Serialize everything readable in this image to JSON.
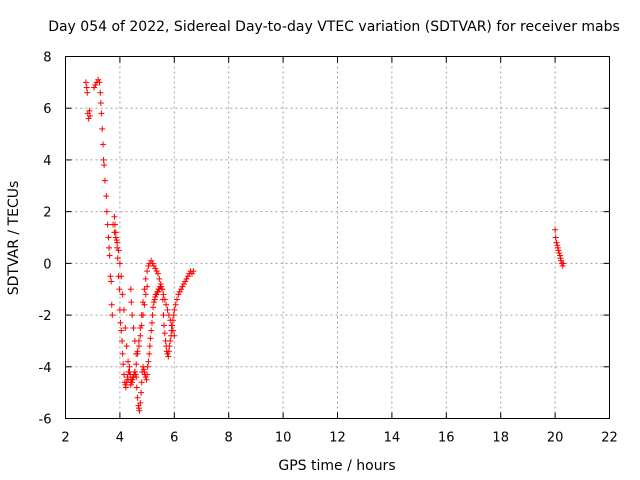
{
  "chart_data": {
    "type": "scatter",
    "title": "Day 054 of 2022, Sidereal Day-to-day VTEC variation (SDTVAR) for receiver mabs",
    "xlabel": "GPS time / hours",
    "ylabel": "SDTVAR / TECUs",
    "xlim": [
      2,
      22
    ],
    "ylim": [
      -6,
      8
    ],
    "xticks": [
      2,
      4,
      6,
      8,
      10,
      12,
      14,
      16,
      18,
      20,
      22
    ],
    "yticks": [
      -6,
      -4,
      -2,
      0,
      2,
      4,
      6,
      8
    ],
    "grid": true,
    "marker": "plus",
    "color": "#ff0000",
    "series": [
      {
        "name": "SDTVAR",
        "x": [
          2.75,
          2.78,
          2.8,
          2.82,
          2.85,
          2.88,
          2.9,
          3.05,
          3.1,
          3.15,
          3.2,
          3.25,
          3.28,
          3.3,
          3.32,
          3.35,
          3.38,
          3.4,
          3.42,
          3.45,
          3.5,
          3.52,
          3.55,
          3.58,
          3.6,
          3.62,
          3.65,
          3.68,
          3.7,
          3.72,
          3.8,
          3.82,
          3.85,
          3.88,
          3.9,
          3.92,
          3.95,
          3.98,
          4.0,
          4.02,
          4.05,
          4.08,
          4.1,
          4.12,
          4.15,
          4.18,
          4.2,
          4.22,
          4.25,
          4.28,
          4.3,
          4.32,
          4.35,
          4.38,
          4.4,
          4.42,
          4.45,
          4.48,
          4.5,
          4.52,
          4.55,
          4.58,
          4.6,
          4.62,
          4.65,
          4.68,
          4.7,
          4.72,
          4.75,
          4.78,
          4.8,
          4.82,
          4.85,
          4.88,
          4.9,
          4.92,
          4.95,
          4.98,
          5.0,
          5.02,
          5.05,
          5.08,
          5.1,
          5.12,
          5.15,
          5.18,
          5.2,
          5.22,
          5.25,
          5.28,
          5.3,
          5.32,
          5.35,
          5.38,
          5.4,
          5.42,
          5.45,
          5.48,
          5.5,
          5.52,
          5.55,
          5.58,
          5.6,
          5.62,
          5.65,
          5.68,
          5.7,
          5.72,
          5.75,
          5.78,
          5.8,
          5.82,
          5.85,
          5.88,
          5.9,
          5.92,
          5.95,
          5.98,
          6.0,
          6.05,
          6.1,
          6.15,
          6.2,
          6.25,
          6.3,
          6.35,
          6.4,
          6.45,
          6.5,
          6.55,
          6.6,
          6.65,
          6.7,
          4.4,
          4.42,
          4.45,
          4.5,
          4.55,
          4.6,
          4.65,
          4.7,
          4.75,
          4.8,
          4.85,
          4.9,
          4.95,
          5.0,
          3.75,
          3.8,
          3.85,
          3.9,
          3.95,
          4.0,
          4.05,
          4.1,
          4.15,
          4.2,
          4.25,
          4.3,
          4.35,
          4.4,
          4.45,
          4.5,
          4.55,
          4.6,
          4.65,
          4.7,
          4.75,
          4.8,
          4.85,
          4.9,
          4.95,
          5.0,
          5.05,
          5.1,
          5.15,
          5.2,
          5.25,
          5.3,
          5.35,
          5.4,
          5.45,
          5.5,
          5.55,
          5.6,
          5.65,
          5.7,
          5.75,
          5.8,
          5.85,
          5.9,
          5.95,
          6.0,
          20.0,
          20.02,
          20.05,
          20.08,
          20.1,
          20.12,
          20.15,
          20.18,
          20.2,
          20.22,
          20.25,
          20.28,
          20.3
        ],
        "y": [
          7.0,
          6.8,
          6.6,
          5.8,
          5.6,
          5.9,
          5.7,
          6.8,
          6.9,
          7.0,
          7.1,
          7.0,
          6.6,
          6.2,
          5.8,
          5.2,
          4.6,
          4.0,
          3.8,
          3.2,
          2.6,
          2.0,
          1.5,
          1.0,
          0.6,
          0.3,
          -0.5,
          -0.7,
          -1.6,
          -2.0,
          1.8,
          1.5,
          1.2,
          0.9,
          0.6,
          0.2,
          -0.5,
          -1.0,
          -1.8,
          -2.3,
          -2.6,
          -3.0,
          -3.5,
          -3.9,
          -4.3,
          -4.6,
          -4.7,
          -4.8,
          -4.6,
          -4.4,
          -4.5,
          -4.2,
          -4.0,
          -4.3,
          -4.7,
          -4.6,
          -4.5,
          -4.4,
          -4.4,
          -4.3,
          -4.2,
          -4.3,
          -4.4,
          -4.8,
          -5.2,
          -5.5,
          -5.6,
          -5.7,
          -5.4,
          -5.0,
          -4.6,
          -4.2,
          -4.0,
          -4.1,
          -4.2,
          -4.3,
          -4.4,
          -4.5,
          -4.3,
          -4.0,
          -3.8,
          -3.5,
          -3.2,
          -2.9,
          -2.6,
          -2.3,
          -2.0,
          -1.7,
          -1.5,
          -1.4,
          -1.3,
          -1.2,
          -1.2,
          -1.1,
          -1.1,
          -1.0,
          -1.0,
          -0.9,
          -0.9,
          -0.9,
          -1.0,
          -1.4,
          -2.0,
          -2.4,
          -2.7,
          -3.0,
          -3.2,
          -3.4,
          -3.5,
          -3.6,
          -3.4,
          -3.2,
          -3.0,
          -2.8,
          -2.6,
          -2.4,
          -2.2,
          -2.0,
          -1.8,
          -1.6,
          -1.4,
          -1.2,
          -1.1,
          -1.0,
          -0.9,
          -0.8,
          -0.7,
          -0.6,
          -0.5,
          -0.4,
          -0.3,
          -0.4,
          -0.3,
          -1.0,
          -1.5,
          -2.0,
          -2.5,
          -3.0,
          -3.5,
          -3.4,
          -3.2,
          -2.8,
          -2.4,
          -2.0,
          -1.6,
          -1.2,
          -0.9,
          1.5,
          1.2,
          1.0,
          0.8,
          0.5,
          0.0,
          -0.5,
          -1.2,
          -1.8,
          -2.5,
          -3.2,
          -3.8,
          -4.2,
          -4.5,
          -4.6,
          -4.4,
          -4.2,
          -3.9,
          -3.5,
          -3.0,
          -2.5,
          -2.0,
          -1.5,
          -1.0,
          -0.6,
          -0.3,
          -0.1,
          0.0,
          0.1,
          0.0,
          -0.1,
          -0.2,
          -0.3,
          -0.4,
          -0.6,
          -0.8,
          -1.0,
          -1.2,
          -1.4,
          -1.6,
          -1.8,
          -2.0,
          -2.2,
          -2.4,
          -2.6,
          -2.8,
          1.3,
          1.0,
          0.8,
          0.7,
          0.6,
          0.5,
          0.4,
          0.3,
          0.2,
          0.1,
          0.0,
          -0.1,
          0.0
        ]
      }
    ]
  }
}
